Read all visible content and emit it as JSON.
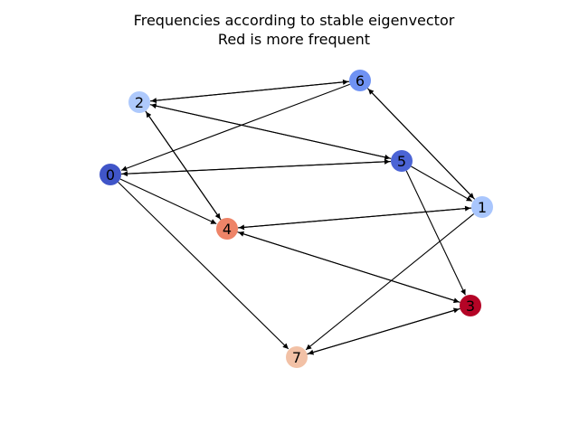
{
  "title": {
    "line1": "Frequencies according to stable eigenvector",
    "line2": "Red is more frequent"
  },
  "graph": {
    "nodes": [
      {
        "id": "0",
        "label": "0",
        "color": "#4055c8"
      },
      {
        "id": "1",
        "label": "1",
        "color": "#a9c6fd"
      },
      {
        "id": "2",
        "label": "2",
        "color": "#aec9fc"
      },
      {
        "id": "3",
        "label": "3",
        "color": "#b40426"
      },
      {
        "id": "4",
        "label": "4",
        "color": "#ee8468"
      },
      {
        "id": "5",
        "label": "5",
        "color": "#4b64d5"
      },
      {
        "id": "6",
        "label": "6",
        "color": "#6f92f3"
      },
      {
        "id": "7",
        "label": "7",
        "color": "#f2c1a6"
      }
    ],
    "edges": [
      {
        "from": "2",
        "to": "6"
      },
      {
        "from": "6",
        "to": "2"
      },
      {
        "from": "2",
        "to": "5"
      },
      {
        "from": "5",
        "to": "2"
      },
      {
        "from": "2",
        "to": "4"
      },
      {
        "from": "4",
        "to": "2"
      },
      {
        "from": "6",
        "to": "0"
      },
      {
        "from": "6",
        "to": "1"
      },
      {
        "from": "1",
        "to": "6"
      },
      {
        "from": "0",
        "to": "5"
      },
      {
        "from": "5",
        "to": "0"
      },
      {
        "from": "0",
        "to": "4"
      },
      {
        "from": "0",
        "to": "7"
      },
      {
        "from": "5",
        "to": "1"
      },
      {
        "from": "5",
        "to": "3"
      },
      {
        "from": "1",
        "to": "4"
      },
      {
        "from": "4",
        "to": "1"
      },
      {
        "from": "1",
        "to": "7"
      },
      {
        "from": "4",
        "to": "3"
      },
      {
        "from": "3",
        "to": "4"
      },
      {
        "from": "7",
        "to": "3"
      },
      {
        "from": "3",
        "to": "7"
      }
    ]
  }
}
